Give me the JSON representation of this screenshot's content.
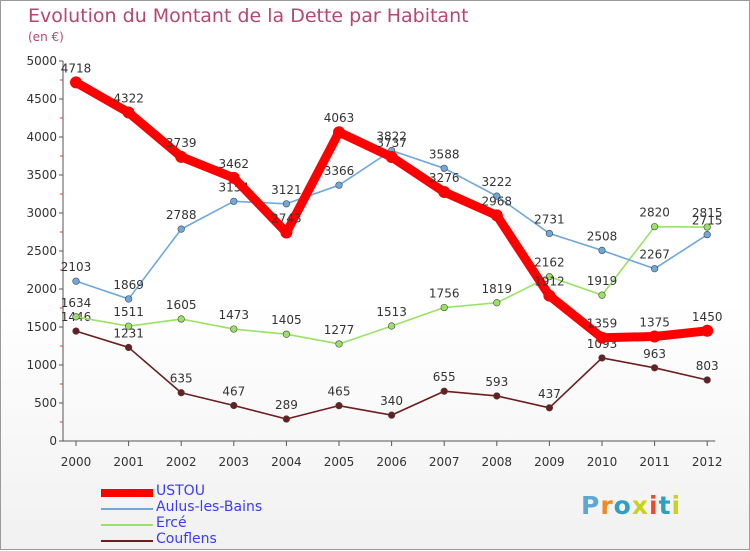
{
  "title": "Evolution du Montant de la Dette par Habitant",
  "unit": "(en €)",
  "logo": {
    "text": "Proxiti",
    "colors": [
      "#5ba7d6",
      "#f08a24",
      "#2fa0c4",
      "#c9d31c",
      "#e74c2e",
      "#2fa0c4",
      "#c9d31c"
    ]
  },
  "chart_data": {
    "type": "line",
    "title": "Evolution du Montant de la Dette par Habitant",
    "ylabel": "(en €)",
    "xlabel": "",
    "ylim": [
      0,
      5000
    ],
    "yticks": [
      0,
      500,
      1000,
      1500,
      2000,
      2500,
      3000,
      3500,
      4000,
      4500,
      5000
    ],
    "categories": [
      "2000",
      "2001",
      "2002",
      "2003",
      "2004",
      "2005",
      "2006",
      "2007",
      "2008",
      "2009",
      "2010",
      "2011",
      "2012"
    ],
    "series": [
      {
        "name": "Couflens",
        "color": "#6b1e1e",
        "values": [
          1446,
          1231,
          635,
          467,
          289,
          465,
          340,
          655,
          593,
          437,
          1093,
          963,
          803
        ]
      },
      {
        "name": "Ercé",
        "color": "#99e265",
        "values": [
          1634,
          1511,
          1605,
          1473,
          1405,
          1277,
          1513,
          1756,
          1819,
          2162,
          1919,
          2820,
          2815
        ]
      },
      {
        "name": "Aulus-les-Bains",
        "color": "#6fa8dc",
        "values": [
          2103,
          1869,
          2788,
          3154,
          3121,
          3366,
          3822,
          3588,
          3222,
          2731,
          2508,
          2267,
          2715
        ]
      },
      {
        "name": "USTOU",
        "color": "#ff0000",
        "values": [
          4718,
          4322,
          3739,
          3462,
          2743,
          4063,
          3737,
          3276,
          2968,
          1912,
          1359,
          1375,
          1450
        ]
      }
    ],
    "legend": [
      "USTOU",
      "Aulus-les-Bains",
      "Ercé",
      "Couflens"
    ]
  }
}
